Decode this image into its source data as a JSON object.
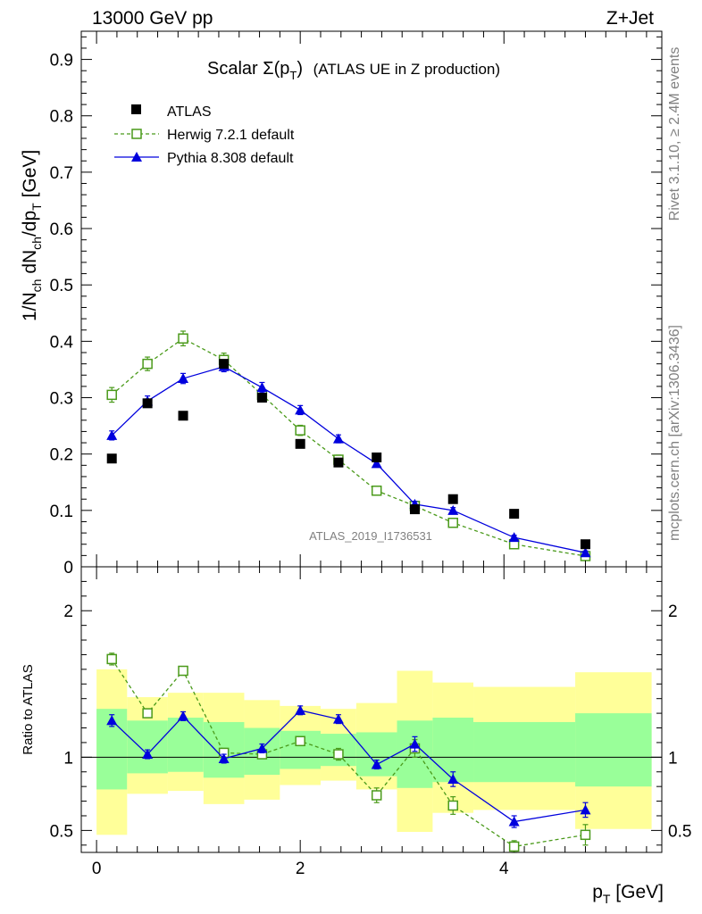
{
  "header": {
    "energy_label": "13000 GeV pp",
    "process_label": "Z+Jet"
  },
  "side_labels": {
    "rivet": "Rivet 3.1.10, ≥ 2.4M events",
    "mcplots": "mcplots.cern.ch [arXiv:1306.3436]"
  },
  "analysis_id": "ATLAS_2019_I1736531",
  "colors": {
    "atlas": "#000000",
    "herwig": "#4a9a1a",
    "pythia": "#0000dd",
    "band_outer": "#ffff99",
    "band_inner": "#99ff99"
  },
  "chart_data": [
    {
      "type": "scatter",
      "title_main": "Scalar Σ(p",
      "title_sub": "T",
      "title_close": ")",
      "title_rest": "(ATLAS UE in Z production)",
      "ylabel": "1/N_ch dN_ch/dp_T [GeV]",
      "ylim": [
        0,
        0.95
      ],
      "yticks": [
        "0",
        "0.1",
        "0.2",
        "0.3",
        "0.4",
        "0.5",
        "0.6",
        "0.7",
        "0.8",
        "0.9"
      ],
      "xlim": [
        -0.15,
        5.55
      ],
      "legend_position": "top-left",
      "series": [
        {
          "name": "ATLAS",
          "style": "data",
          "x": [
            0.15,
            0.5,
            0.85,
            1.25,
            1.625,
            2.0,
            2.375,
            2.75,
            3.125,
            3.5,
            4.1,
            4.8
          ],
          "y": [
            0.192,
            0.29,
            0.268,
            0.36,
            0.3,
            0.218,
            0.185,
            0.194,
            0.102,
            0.12,
            0.094,
            0.04
          ]
        },
        {
          "name": "Herwig 7.2.1 default",
          "style": "herwig",
          "x": [
            0.15,
            0.5,
            0.85,
            1.25,
            1.625,
            2.0,
            2.375,
            2.75,
            3.125,
            3.5,
            4.1,
            4.8
          ],
          "y": [
            0.305,
            0.36,
            0.405,
            0.367,
            0.305,
            0.242,
            0.19,
            0.135,
            0.108,
            0.078,
            0.04,
            0.019
          ],
          "err": [
            0.013,
            0.012,
            0.013,
            0.012,
            0.01,
            0.009,
            0.008,
            0.006,
            0.006,
            0.005,
            0.004,
            0.003
          ]
        },
        {
          "name": "Pythia 8.308 default",
          "style": "pythia",
          "x": [
            0.15,
            0.5,
            0.85,
            1.25,
            1.625,
            2.0,
            2.375,
            2.75,
            3.125,
            3.5,
            4.1,
            4.8
          ],
          "y": [
            0.233,
            0.294,
            0.334,
            0.355,
            0.318,
            0.278,
            0.227,
            0.183,
            0.111,
            0.1,
            0.052,
            0.025
          ],
          "err": [
            0.008,
            0.009,
            0.009,
            0.009,
            0.009,
            0.008,
            0.007,
            0.006,
            0.005,
            0.005,
            0.004,
            0.003
          ]
        }
      ]
    },
    {
      "type": "scatter",
      "ylabel": "Ratio to ATLAS",
      "xlabel_main": "p",
      "xlabel_sub": "T",
      "xlabel_rest": " [GeV]",
      "ylim": [
        0.35,
        2.3
      ],
      "yticks": [
        "0.5",
        "1",
        "2"
      ],
      "xlim": [
        -0.15,
        5.55
      ],
      "xticks": [
        "0",
        "2",
        "4"
      ],
      "reference_line": 1,
      "bands": [
        {
          "xlo": 0.0,
          "xhi": 0.3,
          "outer": [
            0.47,
            1.6
          ],
          "inner": [
            0.78,
            1.33
          ]
        },
        {
          "xlo": 0.3,
          "xhi": 0.7,
          "outer": [
            0.75,
            1.41
          ],
          "inner": [
            0.89,
            1.25
          ]
        },
        {
          "xlo": 0.7,
          "xhi": 1.05,
          "outer": [
            0.77,
            1.44
          ],
          "inner": [
            0.9,
            1.27
          ]
        },
        {
          "xlo": 1.05,
          "xhi": 1.45,
          "outer": [
            0.68,
            1.44
          ],
          "inner": [
            0.86,
            1.24
          ]
        },
        {
          "xlo": 1.45,
          "xhi": 1.8,
          "outer": [
            0.71,
            1.39
          ],
          "inner": [
            0.88,
            1.2
          ]
        },
        {
          "xlo": 1.8,
          "xhi": 2.2,
          "outer": [
            0.81,
            1.35
          ],
          "inner": [
            0.92,
            1.18
          ]
        },
        {
          "xlo": 2.2,
          "xhi": 2.55,
          "outer": [
            0.84,
            1.33
          ],
          "inner": [
            0.94,
            1.16
          ]
        },
        {
          "xlo": 2.55,
          "xhi": 2.95,
          "outer": [
            0.78,
            1.37
          ],
          "inner": [
            0.87,
            1.17
          ]
        },
        {
          "xlo": 2.95,
          "xhi": 3.3,
          "outer": [
            0.49,
            1.59
          ],
          "inner": [
            0.79,
            1.25
          ]
        },
        {
          "xlo": 3.3,
          "xhi": 3.7,
          "outer": [
            0.62,
            1.51
          ],
          "inner": [
            0.83,
            1.27
          ]
        },
        {
          "xlo": 3.7,
          "xhi": 4.7,
          "outer": [
            0.64,
            1.48
          ],
          "inner": [
            0.83,
            1.24
          ]
        },
        {
          "xlo": 4.7,
          "xhi": 5.45,
          "outer": [
            0.51,
            1.58
          ],
          "inner": [
            0.8,
            1.3
          ]
        }
      ],
      "series": [
        {
          "name": "Herwig 7.2.1 default",
          "style": "herwig",
          "x": [
            0.15,
            0.5,
            0.85,
            1.25,
            1.625,
            2.0,
            2.375,
            2.75,
            3.125,
            3.5,
            4.1,
            4.8
          ],
          "y": [
            1.67,
            1.3,
            1.59,
            1.03,
            1.02,
            1.11,
            1.02,
            0.74,
            1.06,
            0.67,
            0.39,
            0.47
          ],
          "err": [
            0.04,
            0.03,
            0.03,
            0.03,
            0.03,
            0.03,
            0.04,
            0.05,
            0.06,
            0.06,
            0.04,
            0.07
          ]
        },
        {
          "name": "Pythia 8.308 default",
          "style": "pythia",
          "x": [
            0.15,
            0.5,
            0.85,
            1.25,
            1.625,
            2.0,
            2.375,
            2.75,
            3.125,
            3.5,
            4.1,
            4.8
          ],
          "y": [
            1.25,
            1.02,
            1.28,
            0.99,
            1.06,
            1.32,
            1.26,
            0.95,
            1.09,
            0.85,
            0.56,
            0.64
          ],
          "err": [
            0.04,
            0.03,
            0.03,
            0.03,
            0.03,
            0.03,
            0.03,
            0.03,
            0.05,
            0.05,
            0.04,
            0.05
          ]
        }
      ]
    }
  ]
}
